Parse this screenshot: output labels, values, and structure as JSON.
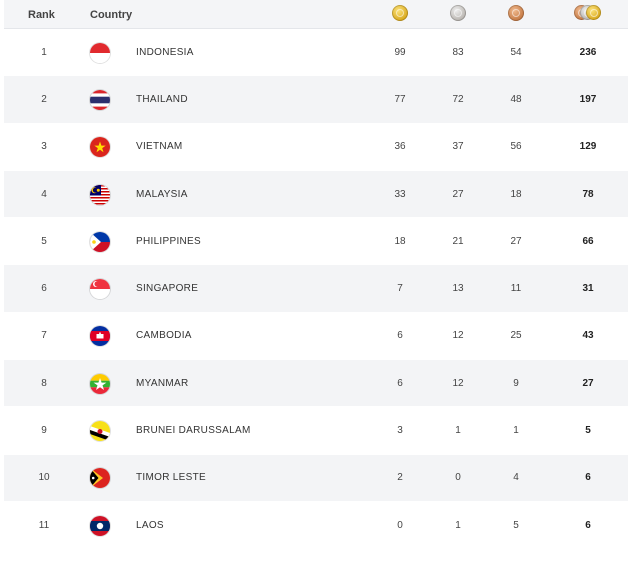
{
  "header": {
    "rank_label": "Rank",
    "country_label": "Country",
    "gold_icon": "gold-medal-icon",
    "silver_icon": "silver-medal-icon",
    "bronze_icon": "bronze-medal-icon",
    "total_icon": "total-medals-icon"
  },
  "colors": {
    "header_bg": "#f4f5f7",
    "alt_row_bg": "#f3f4f6",
    "gold": "#d9a91f",
    "silver": "#b9b5b0",
    "bronze": "#c57a45"
  },
  "rows": [
    {
      "rank": "1",
      "country": "INDONESIA",
      "flag": "indonesia-flag-icon",
      "gold": "99",
      "silver": "83",
      "bronze": "54",
      "total": "236"
    },
    {
      "rank": "2",
      "country": "THAILAND",
      "flag": "thailand-flag-icon",
      "gold": "77",
      "silver": "72",
      "bronze": "48",
      "total": "197"
    },
    {
      "rank": "3",
      "country": "VIETNAM",
      "flag": "vietnam-flag-icon",
      "gold": "36",
      "silver": "37",
      "bronze": "56",
      "total": "129"
    },
    {
      "rank": "4",
      "country": "MALAYSIA",
      "flag": "malaysia-flag-icon",
      "gold": "33",
      "silver": "27",
      "bronze": "18",
      "total": "78"
    },
    {
      "rank": "5",
      "country": "PHILIPPINES",
      "flag": "philippines-flag-icon",
      "gold": "18",
      "silver": "21",
      "bronze": "27",
      "total": "66"
    },
    {
      "rank": "6",
      "country": "SINGAPORE",
      "flag": "singapore-flag-icon",
      "gold": "7",
      "silver": "13",
      "bronze": "11",
      "total": "31"
    },
    {
      "rank": "7",
      "country": "CAMBODIA",
      "flag": "cambodia-flag-icon",
      "gold": "6",
      "silver": "12",
      "bronze": "25",
      "total": "43"
    },
    {
      "rank": "8",
      "country": "MYANMAR",
      "flag": "myanmar-flag-icon",
      "gold": "6",
      "silver": "12",
      "bronze": "9",
      "total": "27"
    },
    {
      "rank": "9",
      "country": "BRUNEI DARUSSALAM",
      "flag": "brunei-flag-icon",
      "gold": "3",
      "silver": "1",
      "bronze": "1",
      "total": "5"
    },
    {
      "rank": "10",
      "country": "TIMOR LESTE",
      "flag": "timor-leste-flag-icon",
      "gold": "2",
      "silver": "0",
      "bronze": "4",
      "total": "6"
    },
    {
      "rank": "11",
      "country": "LAOS",
      "flag": "laos-flag-icon",
      "gold": "0",
      "silver": "1",
      "bronze": "5",
      "total": "6"
    }
  ]
}
